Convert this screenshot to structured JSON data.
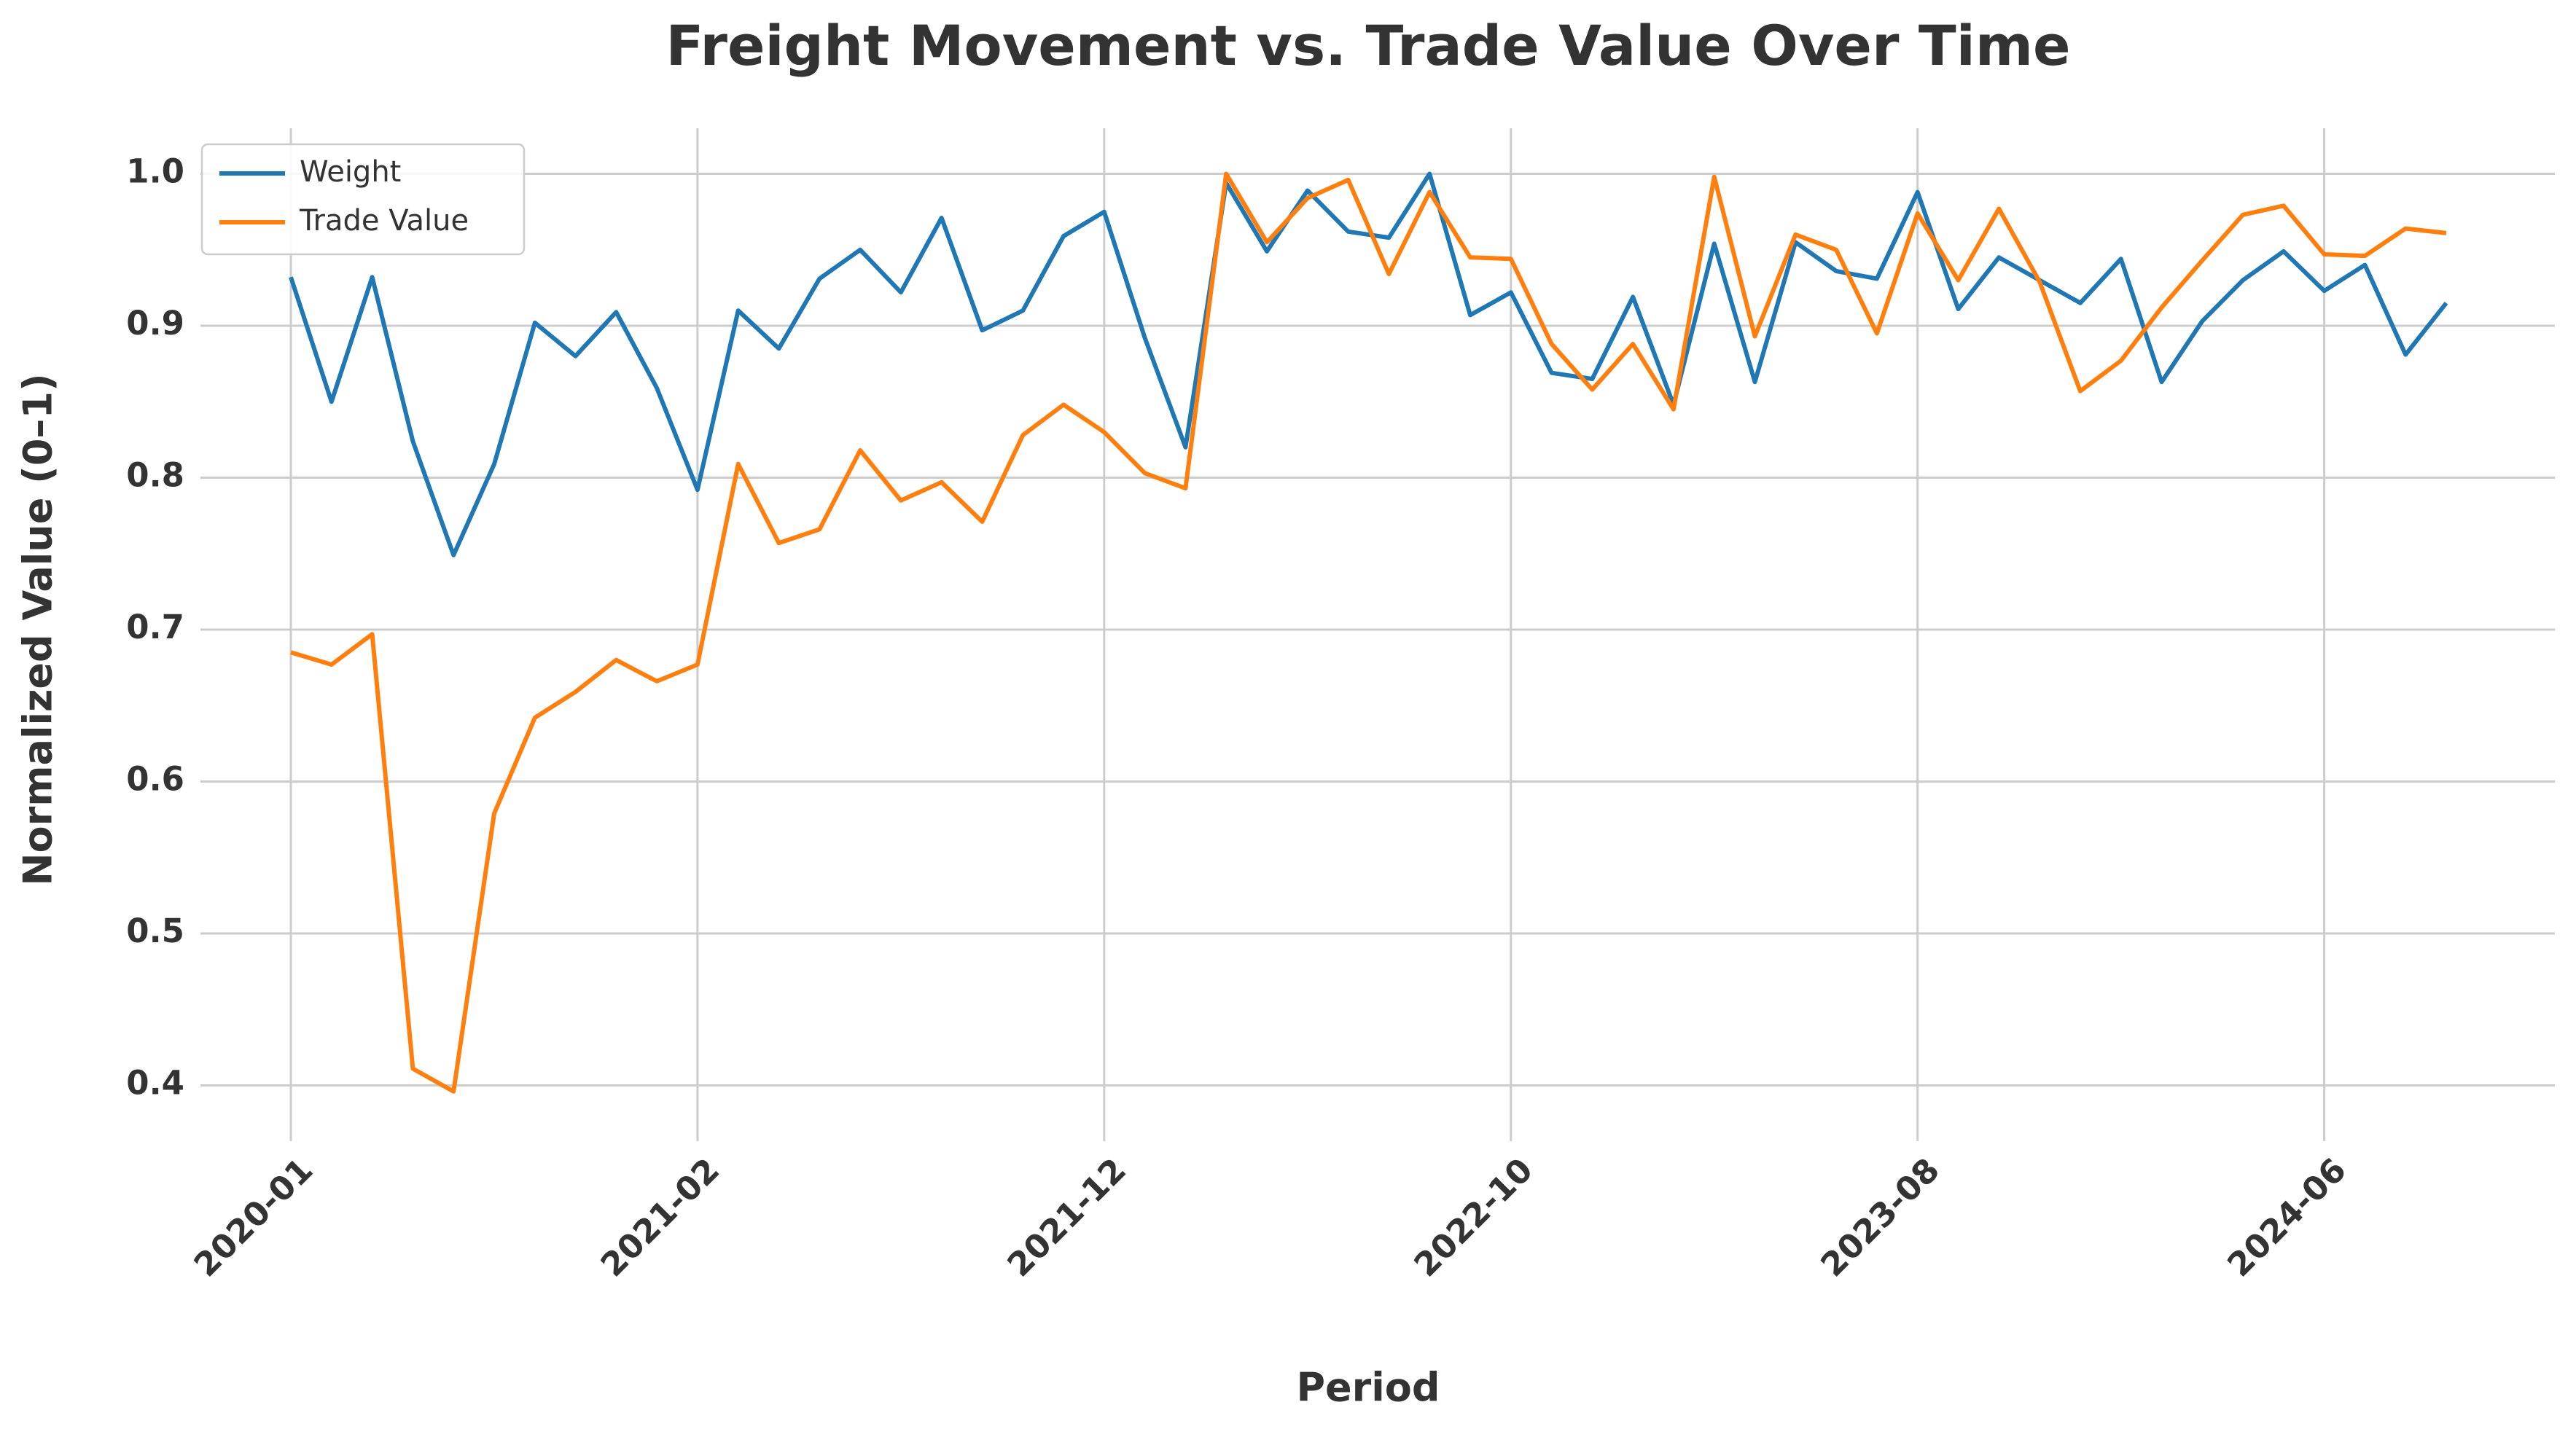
{
  "chart_data": {
    "type": "line",
    "title": "Freight Movement vs. Trade Value Over Time",
    "xlabel": "Period",
    "ylabel": "Normalized Value (0–1)",
    "categories": [
      "2020-01",
      null,
      null,
      null,
      null,
      null,
      null,
      null,
      null,
      null,
      "2021-02",
      null,
      null,
      null,
      null,
      null,
      null,
      null,
      null,
      null,
      "2021-12",
      null,
      null,
      null,
      null,
      null,
      null,
      null,
      null,
      null,
      "2022-10",
      null,
      null,
      null,
      null,
      null,
      null,
      null,
      null,
      null,
      "2023-08",
      null,
      null,
      null,
      null,
      null,
      null,
      null,
      null,
      null,
      "2024-06",
      null,
      null,
      null
    ],
    "series": [
      {
        "name": "Weight",
        "color": "#1f77b4",
        "values": [
          0.932,
          0.85,
          0.932,
          0.824,
          0.749,
          0.809,
          0.902,
          0.88,
          0.909,
          0.859,
          0.792,
          0.91,
          0.885,
          0.931,
          0.95,
          0.922,
          0.971,
          0.897,
          0.91,
          0.959,
          0.975,
          0.892,
          0.82,
          0.994,
          0.949,
          0.989,
          0.962,
          0.958,
          1.0,
          0.907,
          0.922,
          0.869,
          0.865,
          0.919,
          0.848,
          0.954,
          0.863,
          0.955,
          0.936,
          0.931,
          0.988,
          0.911,
          0.945,
          0.93,
          0.915,
          0.944,
          0.863,
          0.903,
          0.93,
          0.949,
          0.923,
          0.94,
          0.881,
          0.915
        ]
      },
      {
        "name": "Trade Value",
        "color": "#ff7f0e",
        "values": [
          0.685,
          0.677,
          0.697,
          0.411,
          0.396,
          0.579,
          0.642,
          0.659,
          0.68,
          0.666,
          0.677,
          0.809,
          0.757,
          0.766,
          0.818,
          0.785,
          0.797,
          0.771,
          0.828,
          0.848,
          0.83,
          0.803,
          0.793,
          1.0,
          0.955,
          0.984,
          0.996,
          0.934,
          0.988,
          0.945,
          0.944,
          0.888,
          0.858,
          0.888,
          0.845,
          0.998,
          0.893,
          0.96,
          0.95,
          0.895,
          0.974,
          0.93,
          0.977,
          0.929,
          0.857,
          0.877,
          0.912,
          0.943,
          0.973,
          0.979,
          0.947,
          0.946,
          0.964,
          0.961
        ]
      }
    ],
    "ylim": [
      0.37,
      1.03
    ],
    "yticks": [
      0.4,
      0.5,
      0.6,
      0.7,
      0.8,
      0.9,
      {
        "value": 1.0,
        "label": "1.0"
      }
    ],
    "grid": true,
    "legend": "upper left"
  }
}
